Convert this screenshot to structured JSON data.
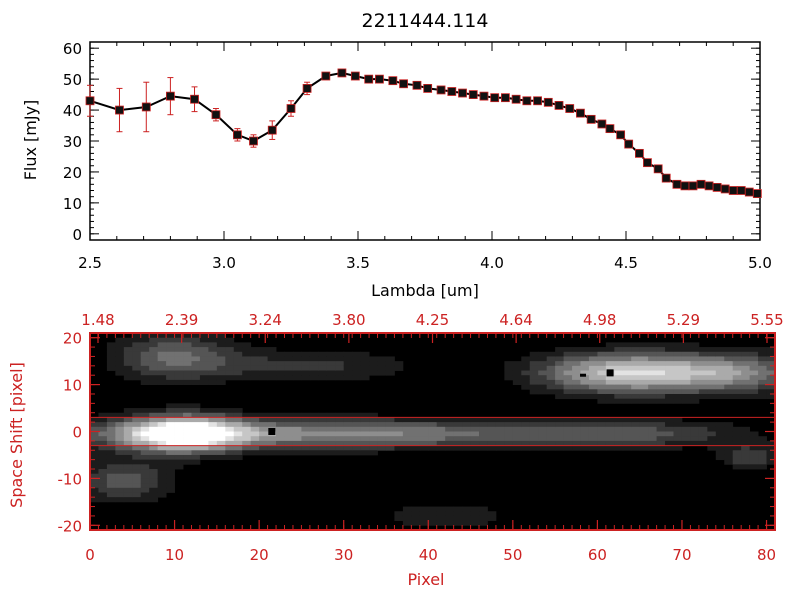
{
  "chart_data": [
    {
      "type": "line",
      "title": "2211444.114",
      "xlabel": "Lambda [um]",
      "ylabel": "Flux [mJy]",
      "xlim": [
        2.5,
        5.0
      ],
      "ylim": [
        -2,
        62
      ],
      "xticks": [
        "2.5",
        "3.0",
        "3.5",
        "4.0",
        "4.5",
        "5.0"
      ],
      "yticks": [
        "0",
        "10",
        "20",
        "30",
        "40",
        "50",
        "60"
      ],
      "grid": false,
      "colors": {
        "line": "#000000",
        "marker": "#111111",
        "error_bar": "#cc2222",
        "frame": "#000000"
      },
      "series": [
        {
          "x": [
            2.5,
            2.61,
            2.71,
            2.8,
            2.89,
            2.97,
            3.05,
            3.11,
            3.18,
            3.25,
            3.31,
            3.38,
            3.44,
            3.49,
            3.54,
            3.58,
            3.63,
            3.67,
            3.72,
            3.76,
            3.81,
            3.85,
            3.89,
            3.93,
            3.97,
            4.01,
            4.05,
            4.09,
            4.13,
            4.17,
            4.21,
            4.25,
            4.29,
            4.33,
            4.37,
            4.41,
            4.44,
            4.48,
            4.51,
            4.55,
            4.58,
            4.62,
            4.65,
            4.69,
            4.72,
            4.75,
            4.78,
            4.81,
            4.84,
            4.87,
            4.9,
            4.93,
            4.96,
            4.99
          ],
          "y": [
            43,
            40,
            41,
            44.5,
            43.5,
            38.5,
            32,
            30,
            33.5,
            40.5,
            47,
            51,
            52,
            51,
            50,
            50,
            49.5,
            48.5,
            48,
            47,
            46.5,
            46,
            45.5,
            45,
            44.5,
            44,
            44,
            43.5,
            43,
            43,
            42.5,
            41.5,
            40.5,
            39,
            37,
            35.5,
            34,
            32,
            29,
            26,
            23,
            21,
            18,
            16,
            15.5,
            15.5,
            16,
            15.5,
            15,
            14.5,
            14,
            14,
            13.5,
            13
          ],
          "yerr": [
            5,
            7,
            8,
            6,
            4,
            2,
            2,
            2,
            3,
            2.5,
            2,
            1,
            1,
            1,
            1,
            1,
            1,
            1,
            1,
            1,
            1,
            1,
            1,
            1,
            1,
            1,
            1,
            1,
            1,
            1,
            1,
            1,
            1,
            1,
            1,
            1,
            1,
            1,
            1,
            1,
            1,
            1,
            1,
            1,
            1,
            1,
            1,
            1,
            1,
            1,
            1,
            1,
            1,
            1
          ]
        }
      ]
    },
    {
      "type": "heatmap",
      "xlabel": "Pixel",
      "ylabel": "Space Shift [pixel]",
      "xlim": [
        0,
        81
      ],
      "ylim": [
        -21,
        21
      ],
      "xticks": [
        "0",
        "10",
        "20",
        "30",
        "40",
        "50",
        "60",
        "70",
        "80"
      ],
      "yticks": [
        "-20",
        "-10",
        "0",
        "10",
        "20"
      ],
      "top_ticks": [
        "1.48",
        "2.39",
        "3.24",
        "3.80",
        "4.25",
        "4.64",
        "4.98",
        "5.29",
        "5.55"
      ],
      "colors": {
        "frame": "#cc2222",
        "background": "#000000",
        "extraction_lines": "#cc2222",
        "markers": "#000000"
      },
      "colormap": "grayscale",
      "extraction_window": [
        -3,
        3
      ],
      "sources": [
        {
          "x": 11,
          "y": -0.5,
          "sx": 5,
          "sy": 2.8,
          "peak": 1.0
        },
        {
          "x": 28,
          "y": -0.5,
          "sx": 22,
          "sy": 2.2,
          "peak": 0.6
        },
        {
          "x": 66,
          "y": -0.5,
          "sx": 8,
          "sy": 2.0,
          "peak": 0.25
        },
        {
          "x": 63,
          "y": 12.5,
          "sx": 7,
          "sy": 3.0,
          "peak": 0.85
        },
        {
          "x": 76,
          "y": 12.5,
          "sx": 6,
          "sy": 3.0,
          "peak": 0.55
        },
        {
          "x": 10,
          "y": 16,
          "sx": 5,
          "sy": 3.5,
          "peak": 0.45
        },
        {
          "x": 26,
          "y": 14,
          "sx": 9,
          "sy": 2.5,
          "peak": 0.25
        },
        {
          "x": 4,
          "y": -10.5,
          "sx": 4,
          "sy": 3.0,
          "peak": 0.4
        },
        {
          "x": 78,
          "y": -5.5,
          "sx": 2.5,
          "sy": 2.0,
          "peak": 0.3
        },
        {
          "x": 42,
          "y": -18,
          "sx": 6,
          "sy": 2.0,
          "peak": 0.2
        }
      ],
      "markers": [
        {
          "x": 21.5,
          "y": 0,
          "shape": "square"
        },
        {
          "x": 61.5,
          "y": 12.5,
          "shape": "square"
        },
        {
          "x": 58.3,
          "y": 12,
          "shape": "dash"
        }
      ]
    }
  ]
}
